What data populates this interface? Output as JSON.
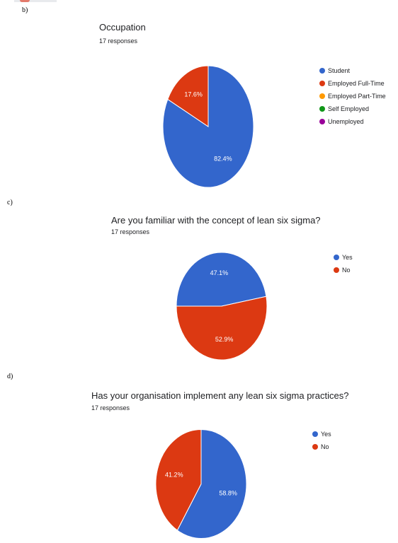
{
  "sections": [
    {
      "label": "b)",
      "title": "Occupation",
      "responses": "17 responses",
      "legend": [
        {
          "name": "Student",
          "color": "#3366cc"
        },
        {
          "name": "Employed Full-Time",
          "color": "#dc3912"
        },
        {
          "name": "Employed Part-Time",
          "color": "#ff9900"
        },
        {
          "name": "Self Employed",
          "color": "#109618"
        },
        {
          "name": "Unemployed",
          "color": "#990099"
        }
      ]
    },
    {
      "label": "c)",
      "title": "Are you familiar with the concept of lean six sigma?",
      "responses": "17 responses",
      "legend": [
        {
          "name": "Yes",
          "color": "#3366cc"
        },
        {
          "name": "No",
          "color": "#dc3912"
        }
      ]
    },
    {
      "label": "d)",
      "title": "Has your organisation implement any lean six sigma practices?",
      "responses": "17 responses",
      "legend": [
        {
          "name": "Yes",
          "color": "#3366cc"
        },
        {
          "name": "No",
          "color": "#dc3912"
        }
      ]
    }
  ],
  "chart_data": [
    {
      "type": "pie",
      "title": "Occupation",
      "categories": [
        "Student",
        "Employed Full-Time",
        "Employed Part-Time",
        "Self Employed",
        "Unemployed"
      ],
      "values": [
        82.4,
        17.6,
        0,
        0,
        0
      ],
      "labels": [
        "82.4%",
        "17.6%",
        "",
        "",
        ""
      ],
      "colors": [
        "#3366cc",
        "#dc3912",
        "#ff9900",
        "#109618",
        "#990099"
      ],
      "legend_position": "right"
    },
    {
      "type": "pie",
      "title": "Are you familiar with the concept of lean six sigma?",
      "categories": [
        "Yes",
        "No"
      ],
      "values": [
        47.1,
        52.9
      ],
      "labels": [
        "47.1%",
        "52.9%"
      ],
      "colors": [
        "#3366cc",
        "#dc3912"
      ],
      "legend_position": "right"
    },
    {
      "type": "pie",
      "title": "Has your organisation implement any lean six sigma practices?",
      "categories": [
        "Yes",
        "No"
      ],
      "values": [
        58.8,
        41.2
      ],
      "labels": [
        "58.8%",
        "41.2%"
      ],
      "colors": [
        "#3366cc",
        "#dc3912"
      ],
      "legend_position": "right"
    }
  ]
}
